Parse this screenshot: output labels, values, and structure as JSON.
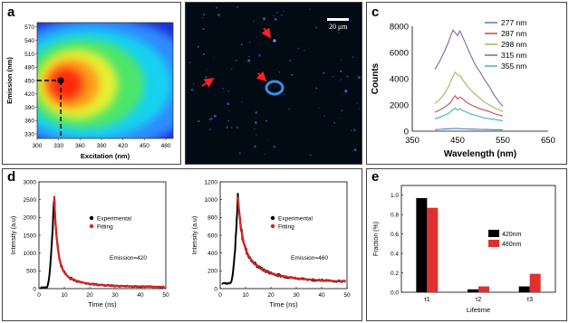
{
  "panels": {
    "a": {
      "label": "a"
    },
    "b": {
      "label": "b",
      "scale_bar": "20 μm"
    },
    "c": {
      "label": "c"
    },
    "d": {
      "label": "d"
    },
    "e": {
      "label": "e"
    }
  },
  "chart_data": [
    {
      "id": "a",
      "type": "heatmap",
      "xlabel": "Excitation (nm)",
      "ylabel": "Emission (nm)",
      "xlim": [
        300,
        490
      ],
      "ylim": [
        320,
        580
      ],
      "xticks": [
        300,
        330,
        360,
        390,
        420,
        450,
        480
      ],
      "yticks": [
        330,
        360,
        390,
        420,
        450,
        480,
        510,
        540,
        570
      ],
      "peak": {
        "x": 333,
        "y": 450
      }
    },
    {
      "id": "c",
      "type": "line",
      "xlabel": "Wavelength (nm)",
      "ylabel": "Counts",
      "xlim": [
        350,
        650
      ],
      "ylim": [
        0,
        8000
      ],
      "xticks": [
        350,
        450,
        550,
        650
      ],
      "yticks": [
        0,
        2000,
        4000,
        6000,
        8000
      ],
      "x": [
        400,
        410,
        420,
        430,
        435,
        440,
        445,
        450,
        455,
        460,
        470,
        480,
        490,
        500,
        510,
        520,
        530,
        540,
        550
      ],
      "series": [
        {
          "name": "277 nm",
          "color": "#4a7fc1",
          "values": [
            120,
            140,
            160,
            180,
            190,
            200,
            205,
            200,
            190,
            180,
            170,
            160,
            150,
            140,
            130,
            125,
            120,
            115,
            110
          ]
        },
        {
          "name": "287 nm",
          "color": "#c0504d",
          "values": [
            1450,
            1600,
            1800,
            2050,
            2200,
            2500,
            2700,
            2450,
            2600,
            2500,
            2200,
            2000,
            1850,
            1700,
            1600,
            1500,
            1350,
            1250,
            1150
          ]
        },
        {
          "name": "298 nm",
          "color": "#9bbb59",
          "values": [
            2100,
            2400,
            2800,
            3400,
            3800,
            4200,
            4500,
            4300,
            4250,
            4000,
            3500,
            3100,
            2800,
            2500,
            2200,
            2000,
            1800,
            1650,
            1500
          ]
        },
        {
          "name": "315 nm",
          "color": "#8064a2",
          "values": [
            4700,
            5300,
            6000,
            6800,
            7300,
            7700,
            7500,
            7300,
            7650,
            7300,
            6500,
            5700,
            5000,
            4500,
            3900,
            3400,
            2800,
            2300,
            1900
          ]
        },
        {
          "name": "355 nm",
          "color": "#4bacc6",
          "values": [
            950,
            1050,
            1200,
            1350,
            1500,
            1650,
            1750,
            1600,
            1700,
            1600,
            1450,
            1300,
            1200,
            1100,
            1000,
            950,
            900,
            850,
            800
          ]
        }
      ]
    },
    {
      "id": "d1",
      "type": "scatter",
      "xlabel": "Time (ns)",
      "ylabel": "Intensity (a.u)",
      "xlim": [
        0,
        50
      ],
      "ylim": [
        0,
        3000
      ],
      "xticks": [
        0,
        10,
        20,
        30,
        40,
        50
      ],
      "yticks": [
        0,
        500,
        1000,
        1500,
        2000,
        2500,
        3000
      ],
      "legend": [
        "Experimental",
        "Fitting"
      ],
      "annotation": "Emission=420",
      "rise_start": 3,
      "peak_time": 6,
      "peak": 2600,
      "baseline": 30,
      "decay": [
        {
          "amp": 1900,
          "tau": 1.2
        },
        {
          "amp": 520,
          "tau": 5
        },
        {
          "amp": 150,
          "tau": 20
        }
      ]
    },
    {
      "id": "d2",
      "type": "scatter",
      "xlabel": "Time (ns)",
      "ylabel": "Intensity (a.u)",
      "xlim": [
        0,
        50
      ],
      "ylim": [
        0,
        1200
      ],
      "xticks": [
        0,
        10,
        20,
        30,
        40,
        50
      ],
      "yticks": [
        0,
        200,
        400,
        600,
        800,
        1000,
        1200
      ],
      "legend": [
        "Experimental",
        "Fitting"
      ],
      "annotation": "Emission=460",
      "rise_start": 4,
      "peak_time": 7,
      "peak": 1030,
      "baseline": 60,
      "decay": [
        {
          "amp": 500,
          "tau": 1.5
        },
        {
          "amp": 330,
          "tau": 6
        },
        {
          "amp": 140,
          "tau": 22
        }
      ]
    },
    {
      "id": "e",
      "type": "bar",
      "xlabel": "Lifetime",
      "ylabel": "Fraction (%)",
      "ylim": [
        0,
        1.1
      ],
      "yticks": [
        0.0,
        0.2,
        0.4,
        0.6,
        0.8,
        1.0
      ],
      "categories": [
        "τ1",
        "τ2",
        "τ3"
      ],
      "series": [
        {
          "name": "420nm",
          "color": "#000000",
          "values": [
            0.97,
            0.03,
            0.06
          ]
        },
        {
          "name": "460nm",
          "color": "#e03030",
          "values": [
            0.87,
            0.06,
            0.19
          ]
        }
      ]
    }
  ]
}
